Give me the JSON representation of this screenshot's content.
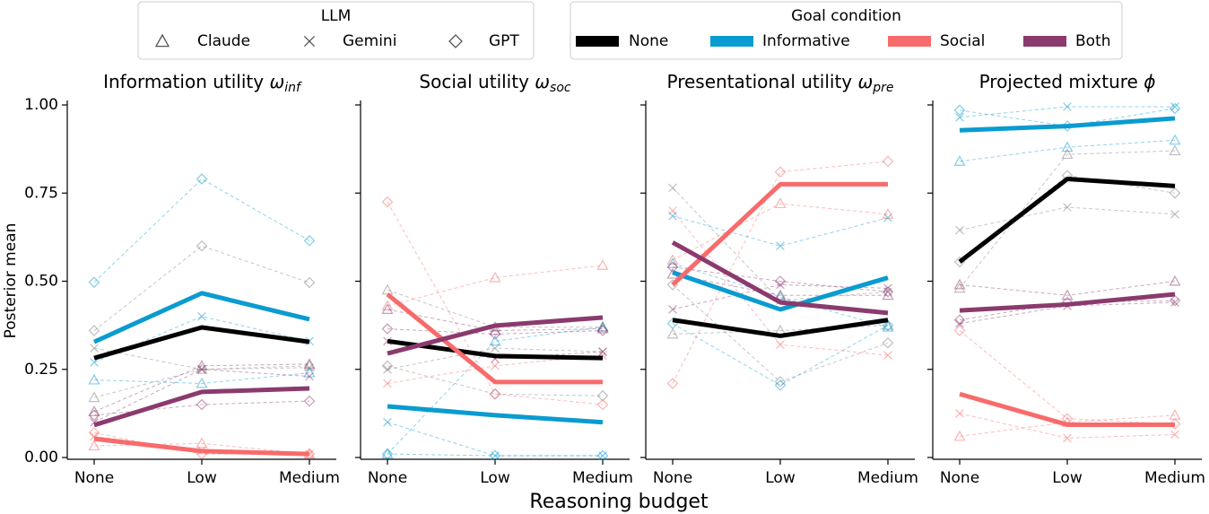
{
  "legends": [
    {
      "title": "LLM",
      "entries": [
        {
          "label": "Claude",
          "marker": "triangle"
        },
        {
          "label": "Gemini",
          "marker": "x"
        },
        {
          "label": "GPT",
          "marker": "diamond"
        }
      ]
    },
    {
      "title": "Goal condition",
      "entries": [
        {
          "label": "None",
          "color": "#000000"
        },
        {
          "label": "Informative",
          "color": "#0a9bd0"
        },
        {
          "label": "Social",
          "color": "#f86b6b"
        },
        {
          "label": "Both",
          "color": "#8b3a6e"
        }
      ]
    }
  ],
  "ylabel": "Posterior mean",
  "xlabel": "Reasoning budget",
  "chart_data": [
    {
      "type": "line",
      "title": "Information utility",
      "symbol": "ω",
      "subscript": "inf",
      "categories": [
        "None",
        "Low",
        "Medium"
      ],
      "ylim": [
        0,
        1
      ],
      "yticks": [
        {
          "value": 0,
          "label": "0.00"
        },
        {
          "value": 0.25,
          "label": "0.25"
        },
        {
          "value": 0.5,
          "label": "0.50"
        },
        {
          "value": 0.75,
          "label": "0.75"
        },
        {
          "value": 1,
          "label": "1.00"
        }
      ],
      "series": [
        {
          "color": "#808080",
          "linestyle": "dashed",
          "marker": "triangle",
          "values": [
            0.17,
            0.25,
            0.26
          ]
        },
        {
          "color": "#808080",
          "linestyle": "dashed",
          "marker": "x",
          "values": [
            0.31,
            0.25,
            0.255
          ]
        },
        {
          "color": "#808080",
          "linestyle": "dashed",
          "marker": "diamond",
          "values": [
            0.36,
            0.6,
            0.496
          ]
        },
        {
          "color": "#0a9bd0",
          "linestyle": "dashed",
          "marker": "triangle",
          "values": [
            0.22,
            0.21,
            0.24
          ]
        },
        {
          "color": "#0a9bd0",
          "linestyle": "dashed",
          "marker": "x",
          "values": [
            0.27,
            0.4,
            0.33
          ]
        },
        {
          "color": "#0a9bd0",
          "linestyle": "dashed",
          "marker": "diamond",
          "values": [
            0.497,
            0.79,
            0.615
          ]
        },
        {
          "color": "#f86b6b",
          "linestyle": "dashed",
          "marker": "triangle",
          "values": [
            0.033,
            0.04,
            0.01
          ]
        },
        {
          "color": "#f86b6b",
          "linestyle": "dashed",
          "marker": "x",
          "values": [
            0.06,
            0.02,
            0.01
          ]
        },
        {
          "color": "#f86b6b",
          "linestyle": "dashed",
          "marker": "diamond",
          "values": [
            0.07,
            0.01,
            0.01
          ]
        },
        {
          "color": "#8b3a6e",
          "linestyle": "dashed",
          "marker": "triangle",
          "values": [
            0.13,
            0.26,
            0.265
          ]
        },
        {
          "color": "#8b3a6e",
          "linestyle": "dashed",
          "marker": "x",
          "values": [
            0.1,
            0.25,
            0.23
          ]
        },
        {
          "color": "#8b3a6e",
          "linestyle": "dashed",
          "marker": "diamond",
          "values": [
            0.12,
            0.15,
            0.16
          ]
        },
        {
          "color": "#000000",
          "linestyle": "solid",
          "values": [
            0.282,
            0.369,
            0.328
          ]
        },
        {
          "color": "#0a9bd0",
          "linestyle": "solid",
          "values": [
            0.328,
            0.466,
            0.392
          ]
        },
        {
          "color": "#f86b6b",
          "linestyle": "solid",
          "values": [
            0.053,
            0.018,
            0.01
          ]
        },
        {
          "color": "#8b3a6e",
          "linestyle": "solid",
          "values": [
            0.092,
            0.186,
            0.196
          ]
        }
      ]
    },
    {
      "type": "line",
      "title": "Social utility",
      "symbol": "ω",
      "subscript": "soc",
      "categories": [
        "None",
        "Low",
        "Medium"
      ],
      "ylim": [
        0,
        1
      ],
      "yticks": [
        0,
        0.25,
        0.5,
        0.75,
        1
      ],
      "ytick_labels": false,
      "series": [
        {
          "color": "#808080",
          "linestyle": "dashed",
          "marker": "triangle",
          "values": [
            0.475,
            0.37,
            0.37
          ]
        },
        {
          "color": "#808080",
          "linestyle": "dashed",
          "marker": "x",
          "values": [
            0.25,
            0.31,
            0.3
          ]
        },
        {
          "color": "#808080",
          "linestyle": "dashed",
          "marker": "diamond",
          "values": [
            0.26,
            0.18,
            0.175
          ]
        },
        {
          "color": "#0a9bd0",
          "linestyle": "dashed",
          "marker": "triangle",
          "values": [
            0.01,
            0.33,
            0.37
          ]
        },
        {
          "color": "#0a9bd0",
          "linestyle": "dashed",
          "marker": "x",
          "values": [
            0.1,
            0.005,
            0.005
          ]
        },
        {
          "color": "#0a9bd0",
          "linestyle": "dashed",
          "marker": "diamond",
          "values": [
            0.01,
            0.005,
            0.005
          ]
        },
        {
          "color": "#f86b6b",
          "linestyle": "dashed",
          "marker": "triangle",
          "values": [
            0.43,
            0.51,
            0.545
          ]
        },
        {
          "color": "#f86b6b",
          "linestyle": "dashed",
          "marker": "x",
          "values": [
            0.21,
            0.26,
            0.29
          ]
        },
        {
          "color": "#f86b6b",
          "linestyle": "dashed",
          "marker": "diamond",
          "values": [
            0.725,
            0.18,
            0.15
          ]
        },
        {
          "color": "#8b3a6e",
          "linestyle": "dashed",
          "marker": "triangle",
          "values": [
            0.42,
            0.36,
            0.365
          ]
        },
        {
          "color": "#8b3a6e",
          "linestyle": "dashed",
          "marker": "x",
          "values": [
            0.33,
            0.28,
            0.3
          ]
        },
        {
          "color": "#8b3a6e",
          "linestyle": "dashed",
          "marker": "diamond",
          "values": [
            0.365,
            0.35,
            0.36
          ]
        },
        {
          "color": "#000000",
          "linestyle": "solid",
          "values": [
            0.33,
            0.288,
            0.282
          ]
        },
        {
          "color": "#0a9bd0",
          "linestyle": "solid",
          "values": [
            0.145,
            0.12,
            0.1
          ]
        },
        {
          "color": "#f86b6b",
          "linestyle": "solid",
          "values": [
            0.463,
            0.214,
            0.214
          ]
        },
        {
          "color": "#8b3a6e",
          "linestyle": "solid",
          "values": [
            0.295,
            0.374,
            0.397
          ]
        }
      ]
    },
    {
      "type": "line",
      "title": "Presentational utility",
      "symbol": "ω",
      "subscript": "pre",
      "categories": [
        "None",
        "Low",
        "Medium"
      ],
      "ylim": [
        0,
        1
      ],
      "yticks": [
        0,
        0.25,
        0.5,
        0.75,
        1
      ],
      "ytick_labels": false,
      "series": [
        {
          "color": "#808080",
          "linestyle": "dashed",
          "marker": "triangle",
          "values": [
            0.35,
            0.36,
            0.375
          ]
        },
        {
          "color": "#808080",
          "linestyle": "dashed",
          "marker": "x",
          "values": [
            0.765,
            0.445,
            0.47
          ]
        },
        {
          "color": "#808080",
          "linestyle": "dashed",
          "marker": "diamond",
          "values": [
            0.49,
            0.215,
            0.325
          ]
        },
        {
          "color": "#0a9bd0",
          "linestyle": "dashed",
          "marker": "triangle",
          "values": [
            0.55,
            0.455,
            0.37
          ]
        },
        {
          "color": "#0a9bd0",
          "linestyle": "dashed",
          "marker": "x",
          "values": [
            0.685,
            0.6,
            0.68
          ]
        },
        {
          "color": "#0a9bd0",
          "linestyle": "dashed",
          "marker": "diamond",
          "values": [
            0.38,
            0.205,
            0.375
          ]
        },
        {
          "color": "#f86b6b",
          "linestyle": "dashed",
          "marker": "triangle",
          "values": [
            0.56,
            0.72,
            0.69
          ]
        },
        {
          "color": "#f86b6b",
          "linestyle": "dashed",
          "marker": "x",
          "values": [
            0.7,
            0.32,
            0.29
          ]
        },
        {
          "color": "#f86b6b",
          "linestyle": "dashed",
          "marker": "diamond",
          "values": [
            0.21,
            0.81,
            0.84
          ]
        },
        {
          "color": "#8b3a6e",
          "linestyle": "dashed",
          "marker": "triangle",
          "values": [
            0.52,
            0.46,
            0.46
          ]
        },
        {
          "color": "#8b3a6e",
          "linestyle": "dashed",
          "marker": "x",
          "values": [
            0.42,
            0.49,
            0.48
          ]
        },
        {
          "color": "#8b3a6e",
          "linestyle": "dashed",
          "marker": "diamond",
          "values": [
            0.54,
            0.5,
            0.47
          ]
        },
        {
          "color": "#000000",
          "linestyle": "solid",
          "values": [
            0.39,
            0.345,
            0.39
          ]
        },
        {
          "color": "#0a9bd0",
          "linestyle": "solid",
          "values": [
            0.525,
            0.42,
            0.51
          ]
        },
        {
          "color": "#f86b6b",
          "linestyle": "solid",
          "values": [
            0.49,
            0.775,
            0.775
          ]
        },
        {
          "color": "#8b3a6e",
          "linestyle": "solid",
          "values": [
            0.61,
            0.44,
            0.41
          ]
        }
      ]
    },
    {
      "type": "line",
      "title": "Projected mixture",
      "symbol": "ϕ",
      "categories": [
        "None",
        "Low",
        "Medium"
      ],
      "ylim": [
        0,
        1
      ],
      "yticks": [
        0,
        0.25,
        0.5,
        0.75,
        1
      ],
      "ytick_labels": false,
      "series": [
        {
          "color": "#808080",
          "linestyle": "dashed",
          "marker": "triangle",
          "values": [
            0.48,
            0.86,
            0.87
          ]
        },
        {
          "color": "#808080",
          "linestyle": "dashed",
          "marker": "x",
          "values": [
            0.645,
            0.71,
            0.69
          ]
        },
        {
          "color": "#808080",
          "linestyle": "dashed",
          "marker": "diamond",
          "values": [
            0.555,
            0.8,
            0.75
          ]
        },
        {
          "color": "#0a9bd0",
          "linestyle": "dashed",
          "marker": "triangle",
          "values": [
            0.84,
            0.88,
            0.9
          ]
        },
        {
          "color": "#0a9bd0",
          "linestyle": "dashed",
          "marker": "x",
          "values": [
            0.965,
            0.995,
            0.995
          ]
        },
        {
          "color": "#0a9bd0",
          "linestyle": "dashed",
          "marker": "diamond",
          "values": [
            0.985,
            0.94,
            0.99
          ]
        },
        {
          "color": "#f86b6b",
          "linestyle": "dashed",
          "marker": "triangle",
          "values": [
            0.06,
            0.1,
            0.12
          ]
        },
        {
          "color": "#f86b6b",
          "linestyle": "dashed",
          "marker": "x",
          "values": [
            0.125,
            0.055,
            0.065
          ]
        },
        {
          "color": "#f86b6b",
          "linestyle": "dashed",
          "marker": "diamond",
          "values": [
            0.36,
            0.11,
            0.095
          ]
        },
        {
          "color": "#8b3a6e",
          "linestyle": "dashed",
          "marker": "triangle",
          "values": [
            0.49,
            0.46,
            0.5
          ]
        },
        {
          "color": "#8b3a6e",
          "linestyle": "dashed",
          "marker": "x",
          "values": [
            0.38,
            0.43,
            0.44
          ]
        },
        {
          "color": "#8b3a6e",
          "linestyle": "dashed",
          "marker": "diamond",
          "values": [
            0.39,
            0.44,
            0.445
          ]
        },
        {
          "color": "#000000",
          "linestyle": "solid",
          "values": [
            0.555,
            0.79,
            0.77
          ]
        },
        {
          "color": "#0a9bd0",
          "linestyle": "solid",
          "values": [
            0.928,
            0.94,
            0.962
          ]
        },
        {
          "color": "#f86b6b",
          "linestyle": "solid",
          "values": [
            0.18,
            0.093,
            0.093
          ]
        },
        {
          "color": "#8b3a6e",
          "linestyle": "solid",
          "values": [
            0.417,
            0.434,
            0.463
          ]
        }
      ]
    }
  ]
}
